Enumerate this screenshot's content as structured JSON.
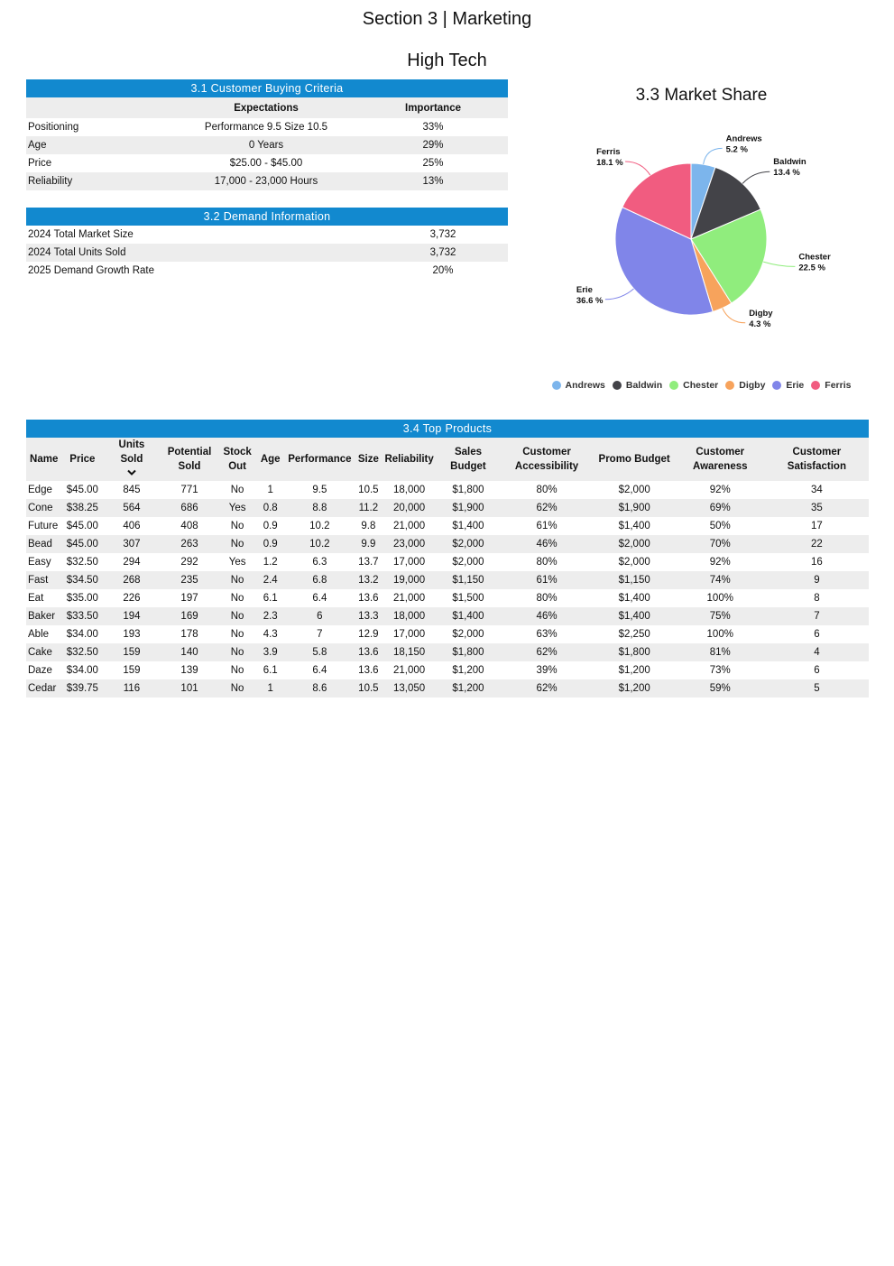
{
  "page_title": "Section 3 | Marketing",
  "segment": "High Tech",
  "criteria": {
    "title": "3.1 Customer Buying Criteria",
    "headers": [
      "",
      "Expectations",
      "Importance"
    ],
    "rows": [
      {
        "label": "Positioning",
        "expectation": "Performance 9.5 Size 10.5",
        "importance": "33%"
      },
      {
        "label": "Age",
        "expectation": "0 Years",
        "importance": "29%"
      },
      {
        "label": "Price",
        "expectation": "$25.00 - $45.00",
        "importance": "25%"
      },
      {
        "label": "Reliability",
        "expectation": "17,000 - 23,000 Hours",
        "importance": "13%"
      }
    ]
  },
  "demand": {
    "title": "3.2 Demand Information",
    "rows": [
      {
        "label": "2024 Total Market Size",
        "value": "3,732"
      },
      {
        "label": "2024 Total Units Sold",
        "value": "3,732"
      },
      {
        "label": "2025 Demand Growth Rate",
        "value": "20%"
      }
    ]
  },
  "chart_data": {
    "type": "pie",
    "title": "3.3 Market Share",
    "labels": [
      "Andrews",
      "Baldwin",
      "Chester",
      "Digby",
      "Erie",
      "Ferris"
    ],
    "values": [
      5.2,
      13.4,
      22.5,
      4.3,
      36.6,
      18.1
    ],
    "value_labels": [
      "5.2 %",
      "13.4 %",
      "22.5 %",
      "4.3 %",
      "36.6 %",
      "18.1 %"
    ],
    "colors": [
      "#7cb5ec",
      "#434348",
      "#90ed7d",
      "#f7a35c",
      "#8085e9",
      "#f15c80"
    ],
    "legend": "bottom"
  },
  "products": {
    "title": "3.4 Top Products",
    "headers": [
      "Name",
      "Price",
      "Units Sold",
      "Potential Sold",
      "Stock Out",
      "Age",
      "Performance",
      "Size",
      "Reliability",
      "Sales Budget",
      "Customer Accessibility",
      "Promo Budget",
      "Customer Awareness",
      "Customer Satisfaction"
    ],
    "sort_icon": "chevron-down-icon",
    "rows": [
      [
        "Edge",
        "$45.00",
        "845",
        "771",
        "No",
        "1",
        "9.5",
        "10.5",
        "18,000",
        "$1,800",
        "80%",
        "$2,000",
        "92%",
        "34"
      ],
      [
        "Cone",
        "$38.25",
        "564",
        "686",
        "Yes",
        "0.8",
        "8.8",
        "11.2",
        "20,000",
        "$1,900",
        "62%",
        "$1,900",
        "69%",
        "35"
      ],
      [
        "Future",
        "$45.00",
        "406",
        "408",
        "No",
        "0.9",
        "10.2",
        "9.8",
        "21,000",
        "$1,400",
        "61%",
        "$1,400",
        "50%",
        "17"
      ],
      [
        "Bead",
        "$45.00",
        "307",
        "263",
        "No",
        "0.9",
        "10.2",
        "9.9",
        "23,000",
        "$2,000",
        "46%",
        "$2,000",
        "70%",
        "22"
      ],
      [
        "Easy",
        "$32.50",
        "294",
        "292",
        "Yes",
        "1.2",
        "6.3",
        "13.7",
        "17,000",
        "$2,000",
        "80%",
        "$2,000",
        "92%",
        "16"
      ],
      [
        "Fast",
        "$34.50",
        "268",
        "235",
        "No",
        "2.4",
        "6.8",
        "13.2",
        "19,000",
        "$1,150",
        "61%",
        "$1,150",
        "74%",
        "9"
      ],
      [
        "Eat",
        "$35.00",
        "226",
        "197",
        "No",
        "6.1",
        "6.4",
        "13.6",
        "21,000",
        "$1,500",
        "80%",
        "$1,400",
        "100%",
        "8"
      ],
      [
        "Baker",
        "$33.50",
        "194",
        "169",
        "No",
        "2.3",
        "6",
        "13.3",
        "18,000",
        "$1,400",
        "46%",
        "$1,400",
        "75%",
        "7"
      ],
      [
        "Able",
        "$34.00",
        "193",
        "178",
        "No",
        "4.3",
        "7",
        "12.9",
        "17,000",
        "$2,000",
        "63%",
        "$2,250",
        "100%",
        "6"
      ],
      [
        "Cake",
        "$32.50",
        "159",
        "140",
        "No",
        "3.9",
        "5.8",
        "13.6",
        "18,150",
        "$1,800",
        "62%",
        "$1,800",
        "81%",
        "4"
      ],
      [
        "Daze",
        "$34.00",
        "159",
        "139",
        "No",
        "6.1",
        "6.4",
        "13.6",
        "21,000",
        "$1,200",
        "39%",
        "$1,200",
        "73%",
        "6"
      ],
      [
        "Cedar",
        "$39.75",
        "116",
        "101",
        "No",
        "1",
        "8.6",
        "10.5",
        "13,050",
        "$1,200",
        "62%",
        "$1,200",
        "59%",
        "5"
      ]
    ]
  }
}
